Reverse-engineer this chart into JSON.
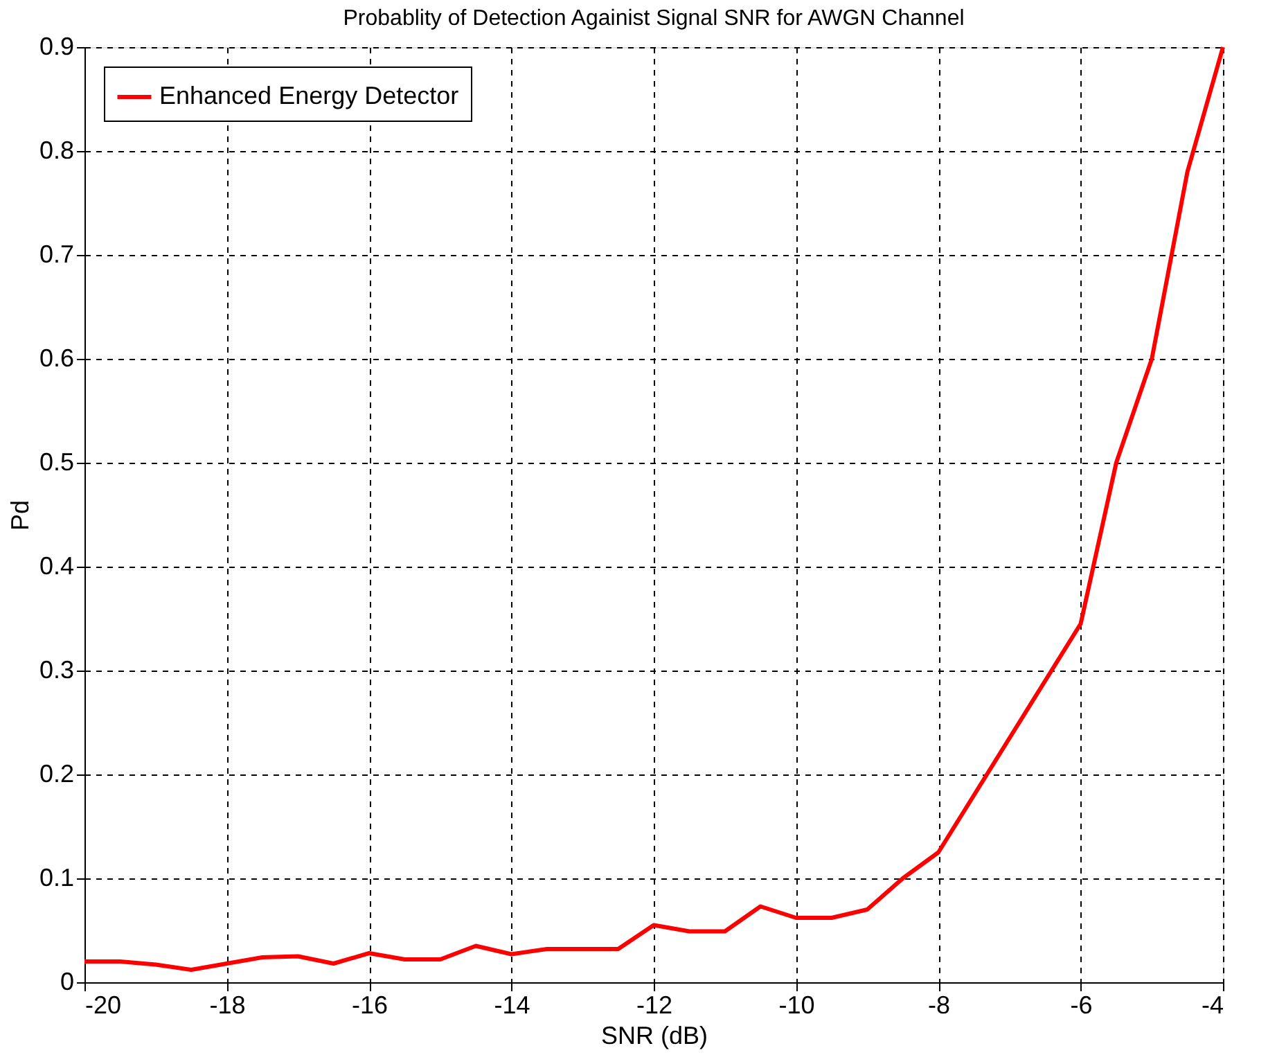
{
  "chart_data": {
    "type": "line",
    "title": "Probablity of Detection Againist Signal SNR for AWGN Channel",
    "xlabel": "SNR (dB)",
    "ylabel": "Pd",
    "x": [
      -20,
      -19.5,
      -19,
      -18.5,
      -18,
      -17.5,
      -17,
      -16.5,
      -16,
      -15.5,
      -15,
      -14.5,
      -14,
      -13.5,
      -13,
      -12.5,
      -12,
      -11.5,
      -11,
      -10.5,
      -10,
      -9.5,
      -9,
      -8.5,
      -8,
      -7.5,
      -7,
      -6.5,
      -6,
      -5.5,
      -5,
      -4.5,
      -4
    ],
    "series": [
      {
        "name": "Enhanced Energy Detector",
        "color": "#ff0000",
        "values": [
          0.02,
          0.02,
          0.017,
          0.012,
          0.018,
          0.024,
          0.025,
          0.018,
          0.028,
          0.022,
          0.022,
          0.035,
          0.027,
          0.032,
          0.032,
          0.032,
          0.055,
          0.049,
          0.049,
          0.073,
          0.062,
          0.062,
          0.07,
          0.1,
          0.125,
          0.18,
          0.235,
          0.29,
          0.345,
          0.5,
          0.6,
          0.78,
          0.9
        ]
      }
    ],
    "xlim": [
      -20,
      -4
    ],
    "xticks": [
      -20,
      -18,
      -16,
      -14,
      -12,
      -10,
      -8,
      -6,
      -4
    ],
    "ylim": [
      0,
      0.9
    ],
    "yticks": [
      0,
      0.1,
      0.2,
      0.3,
      0.4,
      0.5,
      0.6,
      0.7,
      0.8,
      0.9
    ],
    "grid": true,
    "legend": "top left",
    "line_style": "solid",
    "marker": "none"
  }
}
